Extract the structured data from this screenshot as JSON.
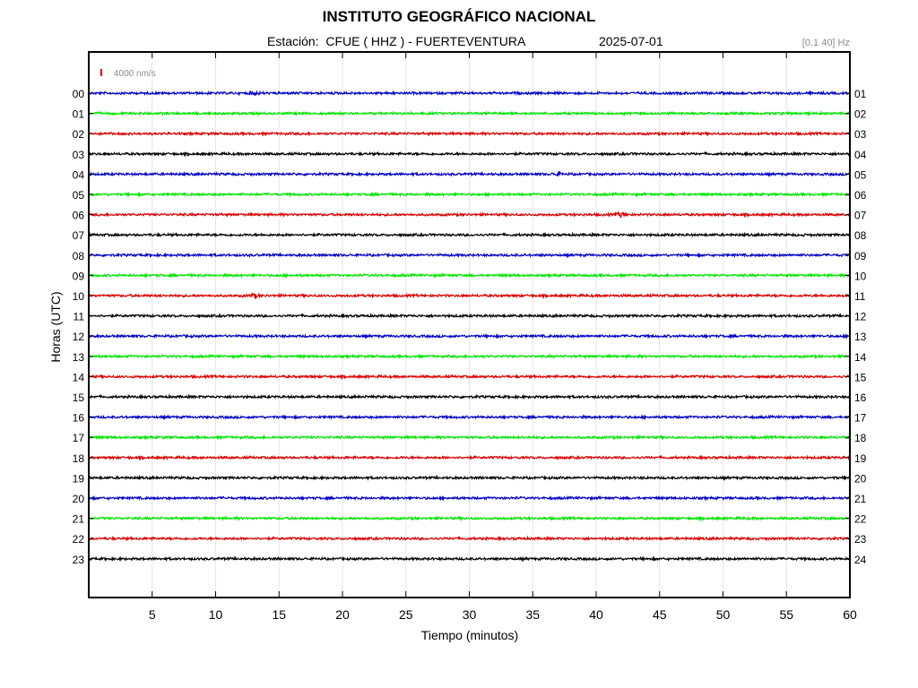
{
  "header": {
    "institution": "INSTITUTO GEOGRÁFICO NACIONAL",
    "station_line": "Estación:  CFUE ( HHZ ) - FUERTEVENTURA",
    "date": "2025-07-01",
    "filter": "[0.1 40] Hz"
  },
  "scale_label": "4000 nm/s",
  "colors": {
    "blue": "#0000c8",
    "green": "#00e600",
    "red": "#dc0000",
    "black": "#000000",
    "scale_bar": "#dc0000",
    "grid": "#e6e6e6"
  },
  "chart_data": {
    "type": "line",
    "title": "INSTITUTO GEOGRÁFICO NACIONAL",
    "xlabel": "Tiempo (minutos)",
    "ylabel": "Horas (UTC)",
    "xlim": [
      0,
      60
    ],
    "x_ticks": [
      5,
      10,
      15,
      20,
      25,
      30,
      35,
      40,
      45,
      50,
      55,
      60
    ],
    "vertical_grid": true,
    "left_labels": [
      "00",
      "01",
      "02",
      "03",
      "04",
      "05",
      "06",
      "07",
      "08",
      "09",
      "10",
      "11",
      "12",
      "13",
      "14",
      "15",
      "16",
      "17",
      "18",
      "19",
      "20",
      "21",
      "22",
      "23"
    ],
    "right_labels": [
      "01",
      "02",
      "03",
      "04",
      "05",
      "06",
      "07",
      "08",
      "09",
      "10",
      "11",
      "12",
      "13",
      "14",
      "15",
      "16",
      "17",
      "18",
      "19",
      "20",
      "21",
      "22",
      "23",
      "24"
    ],
    "trace_colors": [
      "blue",
      "green",
      "red",
      "black"
    ],
    "events": [
      {
        "hour": 0,
        "minute": 13,
        "amplitude": 1.6
      },
      {
        "hour": 6,
        "minute": 42,
        "amplitude": 2.2
      },
      {
        "hour": 10,
        "minute": 13,
        "amplitude": 1.5
      },
      {
        "hour": 4,
        "minute": 37,
        "amplitude": 1.4
      }
    ]
  }
}
